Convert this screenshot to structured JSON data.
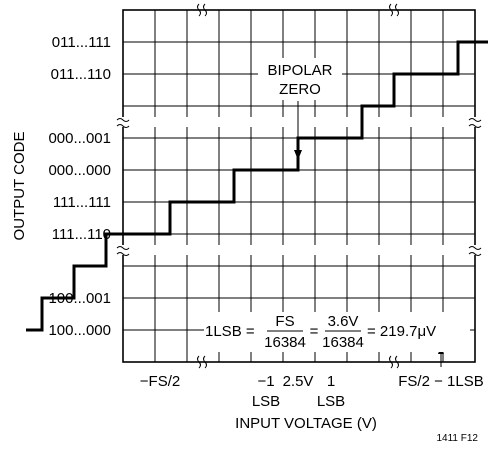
{
  "chart_data": {
    "type": "line",
    "ylabel": "OUTPUT CODE",
    "xlabel": "INPUT VOLTAGE (V)",
    "y_ticks": [
      "011...111",
      "011...110",
      "000...001",
      "000...000",
      "111...111",
      "111...110",
      "100...001",
      "100...000"
    ],
    "x_ticks": {
      "neg_fs": "−FS/2",
      "m1": "−1",
      "m1_sub": "LSB",
      "zero": "2.5V",
      "p1": "1",
      "p1_sub": "LSB",
      "fs": "FS/2 − 1LSB"
    },
    "annotation": {
      "bipolar_line1": "BIPOLAR",
      "bipolar_line2": "ZERO",
      "lsb_prefix": "1LSB =",
      "frac1_num": "FS",
      "frac1_den": "16384",
      "eq1": "=",
      "frac2_num": "3.6V",
      "frac2_den": "16384",
      "eq2": "= 219.7μV"
    },
    "series": [
      {
        "steps": [
          {
            "x": -8,
            "code": "100...000"
          },
          {
            "x": -7,
            "code": "100...001"
          },
          {
            "x": -6,
            "code": "100...010"
          },
          {
            "x": -5,
            "code": "111...110"
          },
          {
            "x": -4,
            "code": "111...110"
          },
          {
            "x": -3,
            "code": "111...111"
          },
          {
            "x": -2,
            "code": "111...111"
          },
          {
            "x": -1,
            "code": "000...000"
          },
          {
            "x": 0,
            "code": "000...000"
          },
          {
            "x": 1,
            "code": "000...001"
          },
          {
            "x": 2,
            "code": "000...001"
          },
          {
            "x": 3,
            "code": "000...010"
          },
          {
            "x": 4,
            "code": "011...110"
          },
          {
            "x": 5,
            "code": "011...110"
          },
          {
            "x": 6,
            "code": "011...111"
          }
        ]
      }
    ],
    "grid": true
  },
  "figure_id": "1411 F12"
}
